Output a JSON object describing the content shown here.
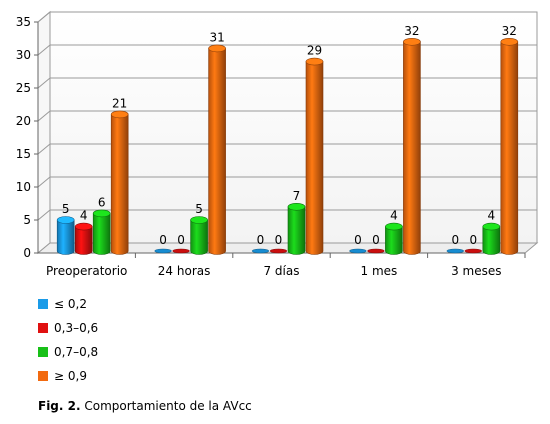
{
  "chart_data": {
    "type": "bar",
    "categories": [
      "Preoperatorio",
      "24 horas",
      "7 días",
      "1 mes",
      "3 meses"
    ],
    "series": [
      {
        "name": "≤ 0,2",
        "values": [
          5,
          0,
          0,
          0,
          0
        ],
        "color": "#1a9be8"
      },
      {
        "name": "0,3–0,6",
        "values": [
          4,
          0,
          0,
          0,
          0
        ],
        "color": "#e01010"
      },
      {
        "name": "0,7–0,8",
        "values": [
          6,
          5,
          7,
          4,
          4
        ],
        "color": "#18c018"
      },
      {
        "name": "≥ 0,9",
        "values": [
          21,
          31,
          29,
          32,
          32
        ],
        "color": "#f26a10"
      }
    ],
    "ylim": [
      0,
      35
    ],
    "yticks": [
      0,
      5,
      10,
      15,
      20,
      25,
      30,
      35
    ],
    "grid": true,
    "legend_position": "bottom-left",
    "style": "3d-cylinder"
  },
  "caption": {
    "label": "Fig. 2.",
    "text": " Comportamiento de la AVcc"
  }
}
